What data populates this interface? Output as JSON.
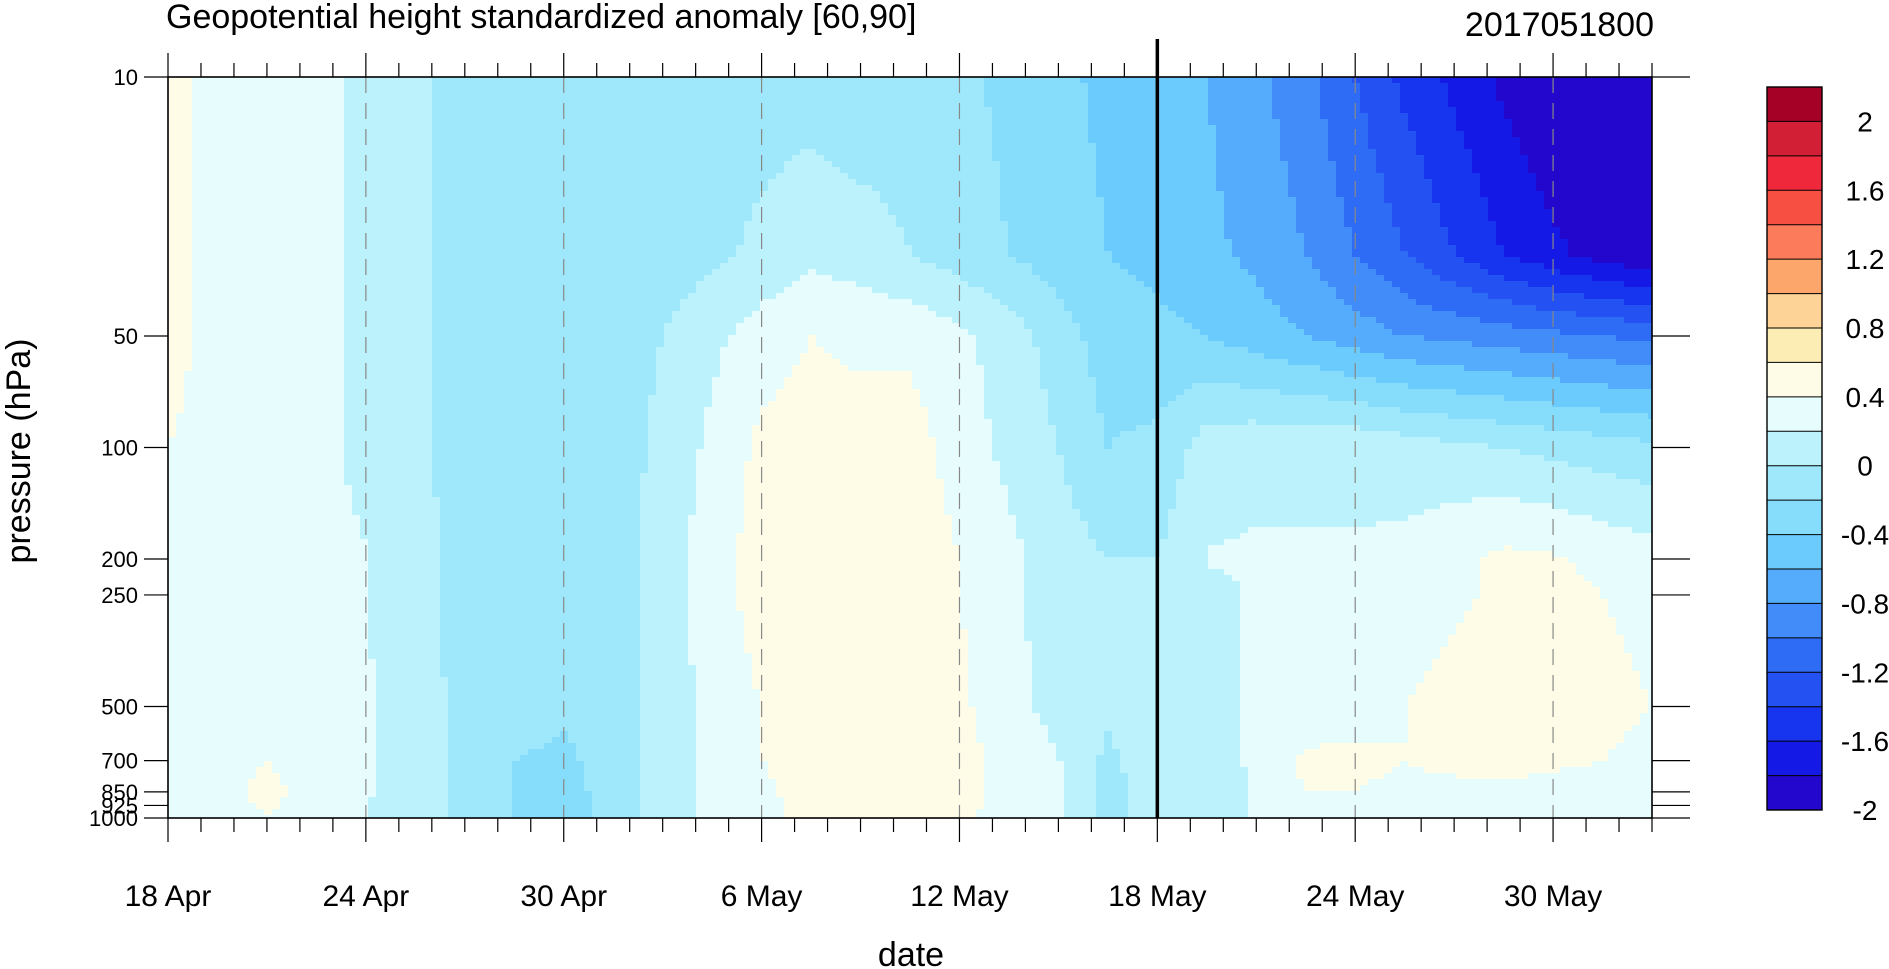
{
  "chart_data": {
    "type": "heatmap",
    "title": "Geopotential height standardized anomaly [60,90]",
    "subtitle": "2017051800",
    "xlabel": "date",
    "ylabel": "pressure (hPa)",
    "x_tick_labels": [
      "18 Apr",
      "24 Apr",
      "30 Apr",
      "6 May",
      "12 May",
      "18 May",
      "24 May",
      "30 May"
    ],
    "x_tick_day_offsets": [
      0,
      6,
      12,
      18,
      24,
      30,
      36,
      42
    ],
    "x_range_day_offsets": [
      0,
      45
    ],
    "vertical_marker_day_offset": 30,
    "y_scale": "log",
    "y_range": [
      1000,
      10
    ],
    "y_tick_labels": [
      "10",
      "50",
      "100",
      "200",
      "250",
      "500",
      "700",
      "850",
      "925",
      "1000"
    ],
    "y_tick_values": [
      10,
      50,
      100,
      200,
      250,
      500,
      700,
      850,
      925,
      1000
    ],
    "colorbar": {
      "labels": [
        "2",
        "1.6",
        "1.2",
        "0.8",
        "0.4",
        "0",
        "-0.4",
        "-0.8",
        "-1.2",
        "-1.6",
        "-2"
      ],
      "colors": [
        "#a50026",
        "#d21f35",
        "#f0283c",
        "#f84f43",
        "#fb7b5a",
        "#fda66c",
        "#fdd398",
        "#fcedb5",
        "#fefce6",
        "#e6fcfd",
        "#bcf2fb",
        "#9fe8fb",
        "#86dcfb",
        "#6ccbfd",
        "#55acfc",
        "#418cf9",
        "#2f6cf5",
        "#2351f2",
        "#1734ee",
        "#1419e6",
        "#2307cc"
      ],
      "levels": [
        2.0,
        1.8,
        1.6,
        1.4,
        1.2,
        1.0,
        0.8,
        0.6,
        0.4,
        0.2,
        0.0,
        -0.2,
        -0.4,
        -0.6,
        -0.8,
        -1.0,
        -1.2,
        -1.4,
        -1.6,
        -1.8,
        -2.0
      ]
    },
    "grid_levels": [
      10,
      30,
      50,
      100,
      200,
      250,
      500,
      700,
      850,
      1000
    ],
    "grid_days": [
      0,
      1.5,
      3,
      4.5,
      6,
      7.5,
      9,
      10.5,
      12,
      13.5,
      15,
      16.5,
      18,
      19.5,
      21,
      22.5,
      24,
      25.5,
      27,
      28.5,
      30,
      31.5,
      33,
      34.5,
      36,
      37.5,
      39,
      40.5,
      42,
      43.5,
      45
    ],
    "z": [
      [
        0.25,
        0.15,
        0.05,
        0.05,
        -0.05,
        -0.15,
        -0.3,
        -0.3,
        -0.3,
        -0.3,
        -0.3,
        -0.3,
        -0.3,
        -0.3,
        -0.35,
        -0.3,
        -0.35,
        -0.45,
        -0.55,
        -0.65,
        -0.7,
        -0.8,
        -0.95,
        -1.15,
        -1.4,
        -1.65,
        -1.85,
        -2.05,
        -2.2,
        -2.35,
        -2.5
      ],
      [
        0.25,
        0.15,
        0.05,
        0.05,
        -0.05,
        -0.15,
        -0.3,
        -0.3,
        -0.3,
        -0.3,
        -0.3,
        -0.25,
        -0.15,
        -0.05,
        -0.1,
        -0.2,
        -0.3,
        -0.4,
        -0.5,
        -0.6,
        -0.65,
        -0.75,
        -0.85,
        -1.0,
        -1.2,
        -1.4,
        -1.6,
        -1.8,
        -1.95,
        -2.1,
        -2.2
      ],
      [
        0.25,
        0.15,
        0.05,
        0.05,
        -0.05,
        -0.15,
        -0.3,
        -0.3,
        -0.3,
        -0.3,
        -0.2,
        -0.05,
        0.1,
        0.2,
        0.15,
        0.15,
        0.05,
        -0.1,
        -0.3,
        -0.5,
        -0.55,
        -0.6,
        -0.7,
        -0.8,
        -0.9,
        -1.0,
        -1.05,
        -1.1,
        -1.15,
        -1.2,
        -1.25
      ],
      [
        0.2,
        0.15,
        0.05,
        0.05,
        -0.05,
        -0.15,
        -0.3,
        -0.3,
        -0.3,
        -0.3,
        -0.15,
        0.05,
        0.25,
        0.3,
        0.3,
        0.3,
        0.1,
        -0.05,
        -0.2,
        -0.4,
        -0.35,
        -0.1,
        -0.05,
        -0.05,
        -0.05,
        -0.1,
        -0.15,
        -0.2,
        -0.25,
        -0.3,
        -0.35
      ],
      [
        0.15,
        0.12,
        0.08,
        0.05,
        0.01,
        -0.1,
        -0.3,
        -0.3,
        -0.3,
        -0.3,
        -0.1,
        0.1,
        0.3,
        0.35,
        0.35,
        0.35,
        0.2,
        0.05,
        -0.1,
        -0.2,
        -0.2,
        0.01,
        0.02,
        0.02,
        0.02,
        0.05,
        0.15,
        0.25,
        0.22,
        0.15,
        0.1
      ],
      [
        0.15,
        0.12,
        0.08,
        0.05,
        0.01,
        -0.1,
        -0.3,
        -0.3,
        -0.3,
        -0.3,
        -0.1,
        0.1,
        0.3,
        0.3,
        0.35,
        0.35,
        0.2,
        0.05,
        -0.1,
        -0.15,
        -0.15,
        -0.05,
        0.02,
        0.02,
        0.02,
        0.05,
        0.15,
        0.25,
        0.25,
        0.2,
        0.15
      ],
      [
        0.1,
        0.1,
        0.1,
        0.05,
        0.01,
        -0.05,
        -0.3,
        -0.3,
        -0.35,
        -0.3,
        -0.1,
        0.05,
        0.2,
        0.25,
        0.3,
        0.35,
        0.25,
        0.05,
        -0.05,
        -0.15,
        -0.1,
        -0.05,
        0.02,
        0.05,
        0.1,
        0.2,
        0.3,
        0.35,
        0.3,
        0.25,
        0.2
      ],
      [
        0.05,
        0.12,
        0.2,
        0.1,
        0.01,
        -0.05,
        -0.3,
        -0.4,
        -0.45,
        -0.3,
        -0.1,
        0.05,
        0.2,
        0.3,
        0.3,
        0.35,
        0.3,
        0.1,
        0.01,
        -0.25,
        -0.05,
        -0.05,
        0.02,
        0.25,
        0.25,
        0.2,
        0.25,
        0.3,
        0.25,
        0.2,
        0.15
      ],
      [
        0.05,
        0.15,
        0.25,
        0.15,
        0.01,
        -0.05,
        -0.3,
        -0.4,
        -0.5,
        -0.3,
        -0.1,
        0.05,
        0.15,
        0.3,
        0.3,
        0.35,
        0.3,
        0.1,
        0.02,
        -0.3,
        -0.05,
        -0.1,
        0.02,
        0.2,
        0.2,
        0.15,
        0.15,
        0.15,
        0.1,
        0.1,
        0.05
      ],
      [
        0.01,
        0.1,
        0.2,
        0.1,
        0.0,
        -0.05,
        -0.3,
        -0.4,
        -0.5,
        -0.3,
        -0.1,
        0.05,
        0.15,
        0.25,
        0.3,
        0.3,
        0.25,
        0.1,
        0.02,
        -0.3,
        -0.05,
        -0.1,
        0.01,
        0.05,
        0.05,
        0.05,
        0.05,
        0.05,
        0.05,
        0.02,
        0.01
      ]
    ]
  }
}
